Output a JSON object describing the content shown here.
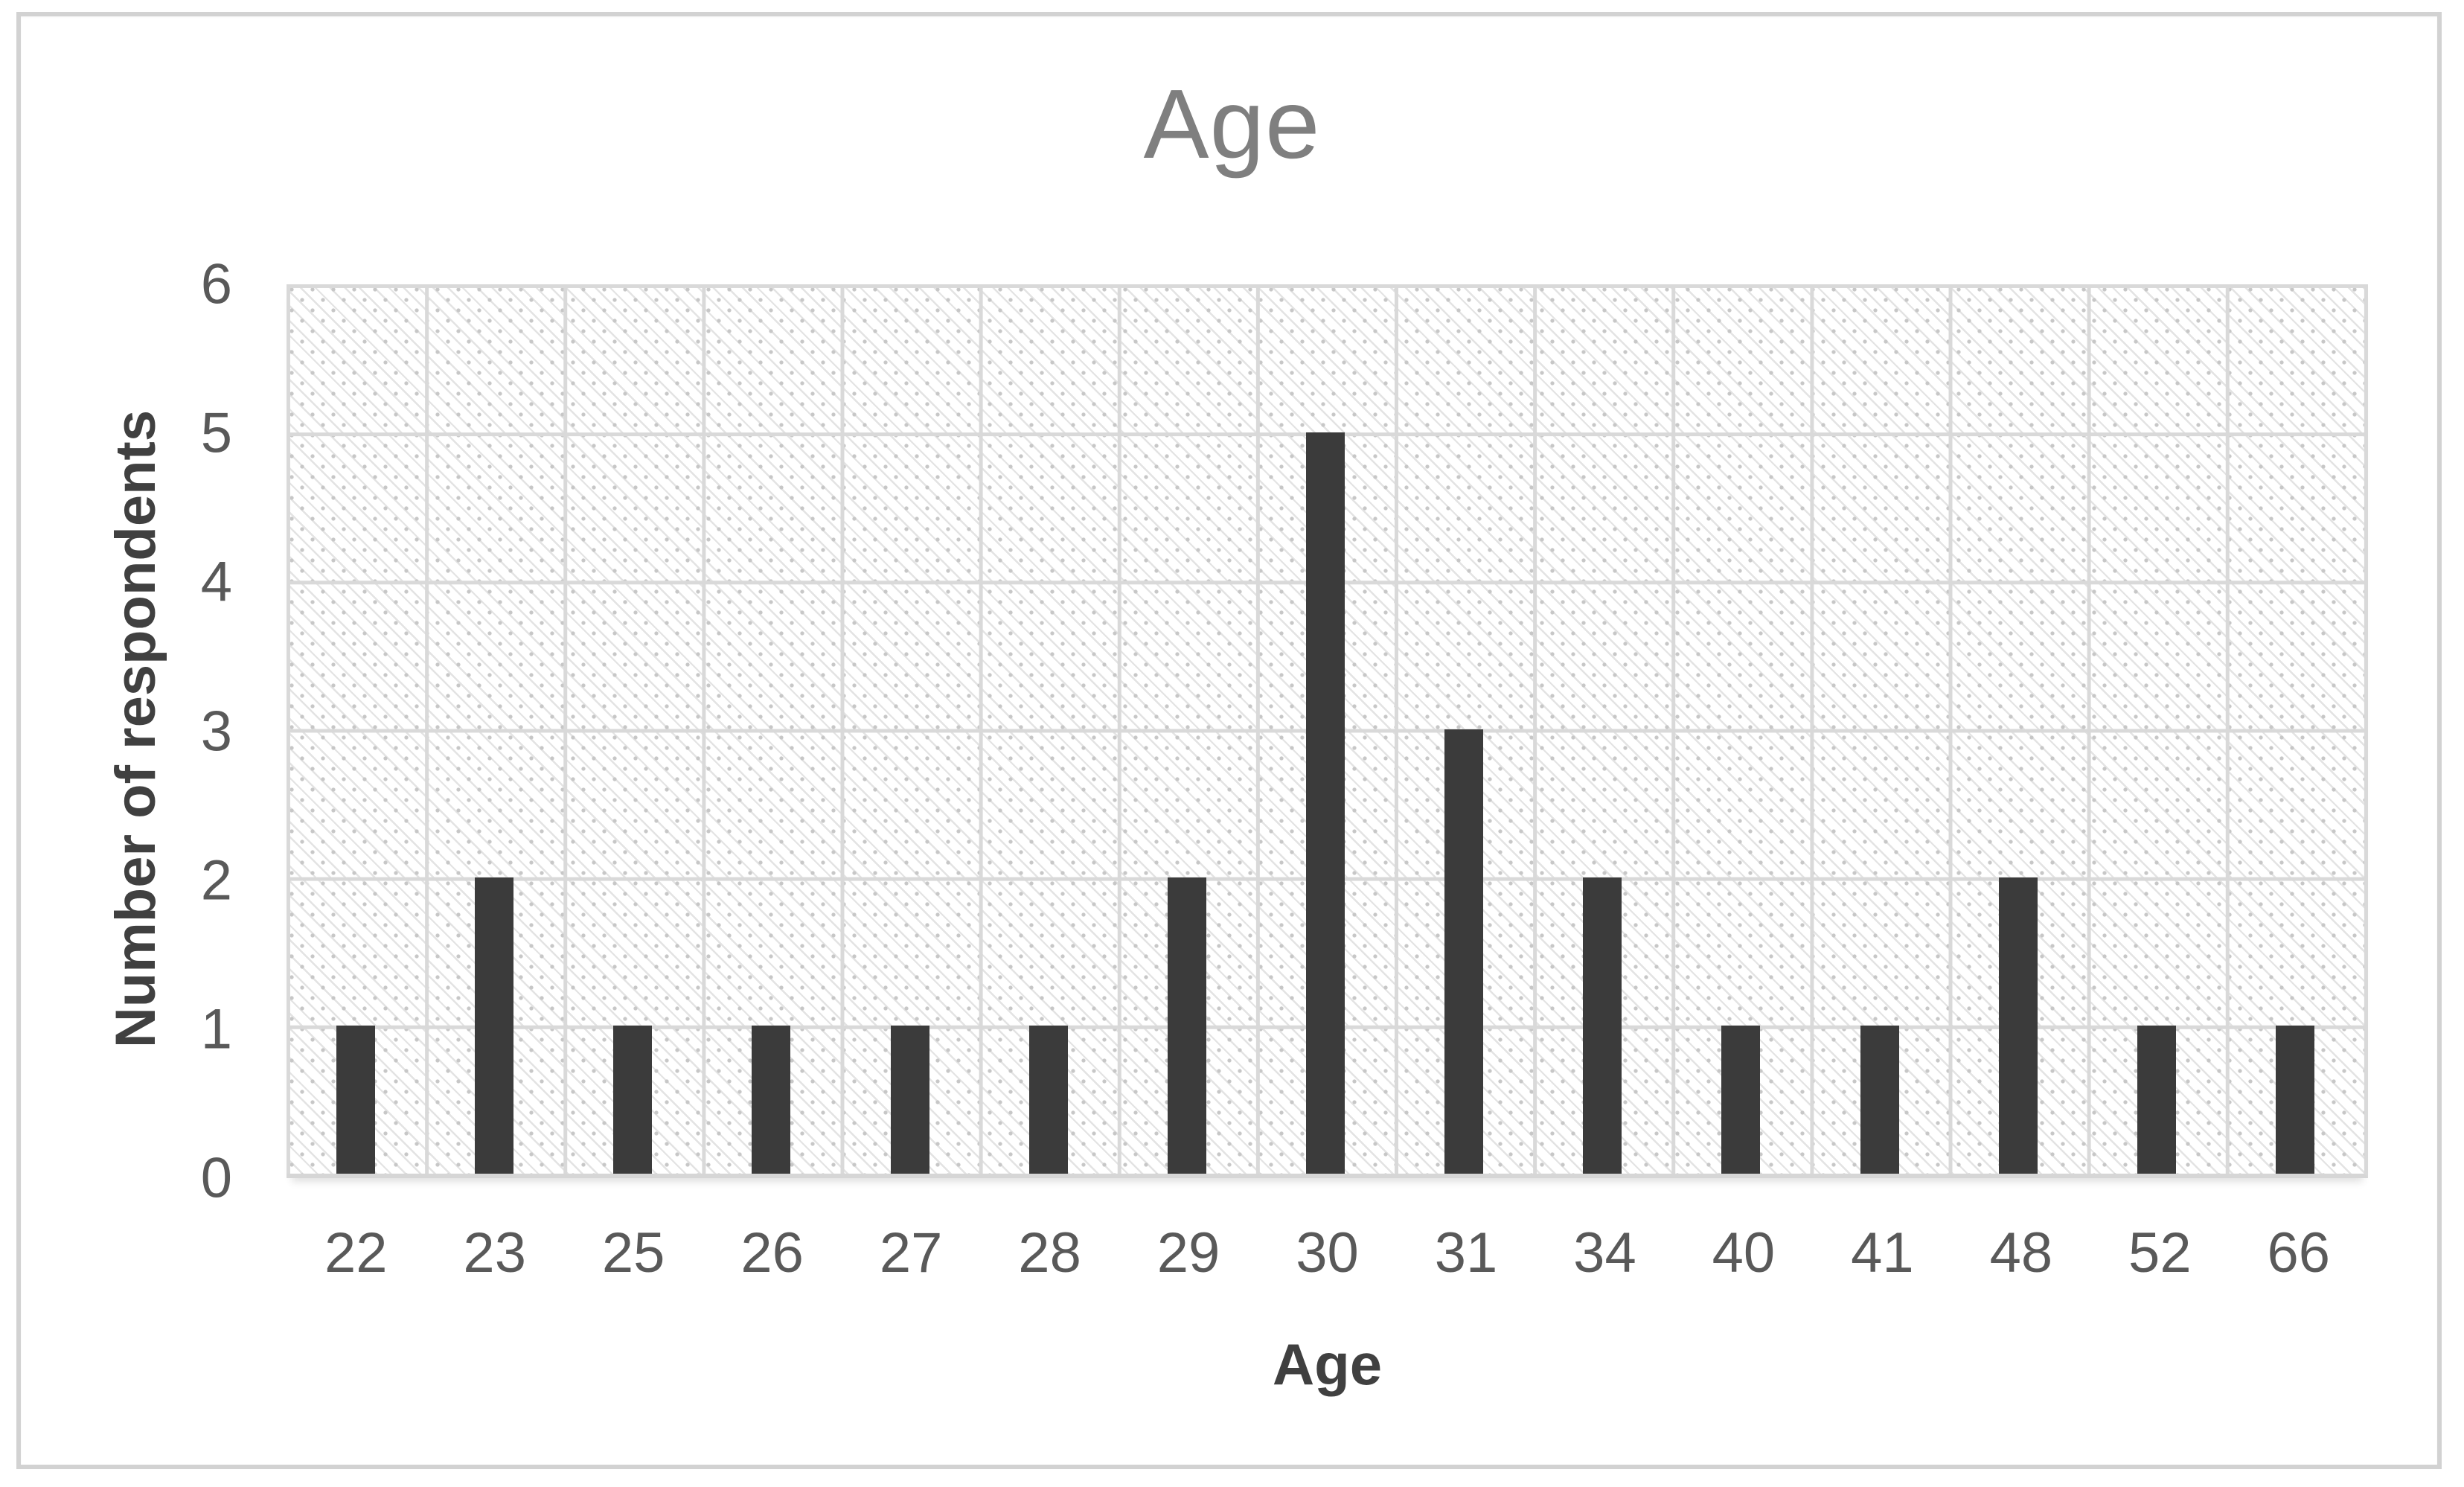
{
  "chart_data": {
    "type": "bar",
    "title": "Age",
    "xlabel": "Age",
    "ylabel": "Number of respondents",
    "categories": [
      "22",
      "23",
      "25",
      "26",
      "27",
      "28",
      "29",
      "30",
      "31",
      "34",
      "40",
      "41",
      "48",
      "52",
      "66"
    ],
    "values": [
      1,
      2,
      1,
      1,
      1,
      1,
      2,
      5,
      3,
      2,
      1,
      1,
      2,
      1,
      1
    ],
    "ylim": [
      0,
      6
    ],
    "yticks": [
      0,
      1,
      2,
      3,
      4,
      5,
      6
    ],
    "grid": "both",
    "legend": "none",
    "plot_background": "diagonal-hatch-pattern",
    "colors": {
      "bar": "#3b3b3b",
      "gridline": "#d9d9d9",
      "title_text": "#7f7f7f",
      "tick_text": "#595959",
      "axis_label_text": "#404040",
      "frame_border": "#d2d2d2"
    }
  }
}
